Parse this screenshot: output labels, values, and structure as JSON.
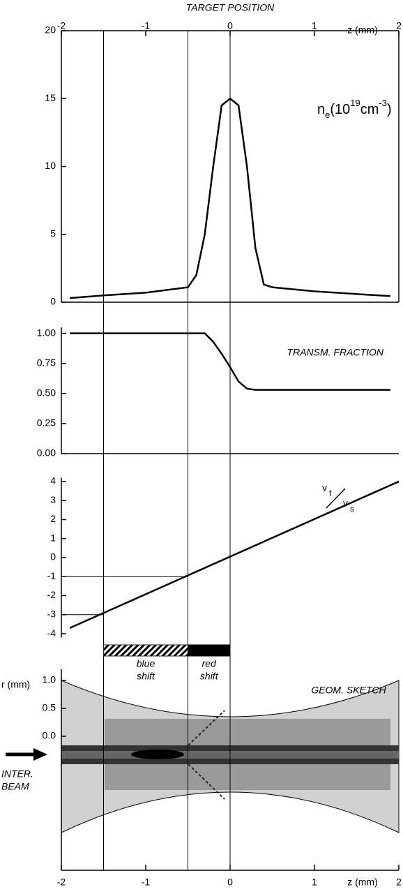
{
  "chart_data": [
    {
      "type": "line",
      "top_axis_title": "TARGET POSITION",
      "xlabel": "z (mm)",
      "label_parts": [
        "n",
        "e",
        "(10",
        "19",
        "cm",
        "-3",
        ")"
      ],
      "xlim": [
        -2,
        2
      ],
      "xticks": [
        -2,
        -1,
        0,
        1,
        2
      ],
      "ylim": [
        0,
        20
      ],
      "yticks": [
        0,
        5,
        10,
        15,
        20
      ],
      "vlines": [
        -1.5,
        -0.5,
        0
      ],
      "x": [
        -1.9,
        -1.5,
        -1.0,
        -0.5,
        -0.4,
        -0.3,
        -0.2,
        -0.1,
        0,
        0.1,
        0.2,
        0.3,
        0.4,
        0.5,
        1.0,
        1.5,
        1.9
      ],
      "values": [
        0.3,
        0.5,
        0.7,
        1.1,
        2,
        5,
        10,
        14.5,
        15,
        14.5,
        10,
        4,
        1.3,
        1.1,
        0.8,
        0.6,
        0.45
      ],
      "color": "#000000"
    },
    {
      "type": "line",
      "annotation": "TRANSM. FRACTION",
      "xlim": [
        -2,
        2
      ],
      "ylim": [
        0,
        1.05
      ],
      "yticks": [
        {
          "value": 0,
          "label": "0.00"
        },
        {
          "value": 0.25,
          "label": "0.25"
        },
        {
          "value": 0.5,
          "label": "0.50"
        },
        {
          "value": 0.75,
          "label": "0.75"
        },
        {
          "value": 1,
          "label": "1.00"
        }
      ],
      "x": [
        -1.9,
        -0.5,
        -0.3,
        -0.2,
        -0.1,
        0,
        0.1,
        0.2,
        0.3,
        1.9
      ],
      "values": [
        1.0,
        1.0,
        1.0,
        0.93,
        0.83,
        0.72,
        0.6,
        0.54,
        0.53,
        0.53
      ],
      "color": "#000000"
    },
    {
      "type": "line",
      "label_parts": [
        "v",
        "f",
        "v",
        "s"
      ],
      "xlim": [
        -2,
        2
      ],
      "ylim": [
        -4.2,
        4.2
      ],
      "yticks": [
        -4,
        -3,
        -2,
        -1,
        0,
        1,
        2,
        3,
        4
      ],
      "x": [
        -1.9,
        2
      ],
      "values": [
        -3.7,
        4
      ],
      "color": "#000000",
      "reference_lines": [
        {
          "y": -1,
          "x": -0.5
        },
        {
          "y": -3,
          "x": -1.5
        }
      ]
    },
    {
      "type": "sketch",
      "annotation": "GEOM. SKETCH",
      "ylabel": "r (mm)",
      "xlabel": "z (mm)",
      "beam_label": [
        "INTER.",
        "BEAM"
      ],
      "xlim": [
        -2,
        2
      ],
      "xticks": [
        -2,
        -1,
        0,
        1,
        2
      ],
      "ylim": [
        -2.4,
        1.2
      ],
      "yticks": [
        {
          "value": 0,
          "label": "0.0"
        },
        {
          "value": 0.5,
          "label": "0.5"
        },
        {
          "value": 1,
          "label": "1.0"
        }
      ],
      "bands": [
        {
          "label": [
            "blue",
            "shift"
          ],
          "start": -1.5,
          "end": -0.5,
          "color": "#222222"
        },
        {
          "label": [
            "red",
            "shift"
          ],
          "start": -0.5,
          "end": 0,
          "color": "#000000"
        }
      ]
    }
  ]
}
